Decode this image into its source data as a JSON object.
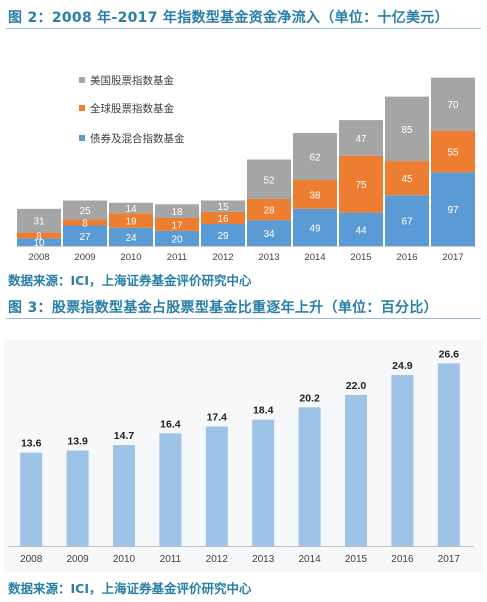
{
  "figure1": {
    "title": "图 2：2008 年-2017 年指数型基金资金净流入（单位：十亿美元）",
    "source": "数据来源：ICI，上海证券基金评价研究中心"
  },
  "figure2": {
    "title": "图 3：股票指数型基金占股票型基金比重逐年上升（单位：百分比）",
    "source": "数据来源：ICI，上海证券基金评价研究中心"
  },
  "colors": {
    "title_blue": "#2a7fa6",
    "grey": "#a5a5a5",
    "orange": "#ed7d31",
    "blue": "#5b9bd5",
    "bar2": "#9dc3e6"
  },
  "chart_data": [
    {
      "type": "bar",
      "stacked": true,
      "categories": [
        "2008",
        "2009",
        "2010",
        "2011",
        "2012",
        "2013",
        "2014",
        "2015",
        "2016",
        "2017"
      ],
      "series": [
        {
          "name": "债券及混合指数基金",
          "color": "#5b9bd5",
          "values": [
            10,
            27,
            24,
            20,
            29,
            34,
            49,
            44,
            67,
            97
          ]
        },
        {
          "name": "全球股票指数基金",
          "color": "#ed7d31",
          "values": [
            8,
            8,
            19,
            17,
            16,
            28,
            38,
            75,
            45,
            55
          ]
        },
        {
          "name": "美国股票指数基金",
          "color": "#a5a5a5",
          "values": [
            31,
            25,
            14,
            18,
            15,
            52,
            62,
            47,
            85,
            70
          ]
        }
      ],
      "legend_position": "top-left",
      "grid": false,
      "ylim": [
        0,
        240
      ]
    },
    {
      "type": "bar",
      "categories": [
        "2008",
        "2009",
        "2010",
        "2011",
        "2012",
        "2013",
        "2014",
        "2015",
        "2016",
        "2017"
      ],
      "values": [
        13.6,
        13.9,
        14.7,
        16.4,
        17.4,
        18.4,
        20.2,
        22.0,
        24.9,
        26.6
      ],
      "value_labels": [
        "13.6",
        "13.9",
        "14.7",
        "16.4",
        "17.4",
        "18.4",
        "20.2",
        "22.0",
        "24.9",
        "26.6"
      ],
      "grid": false,
      "ylim": [
        0,
        30
      ]
    }
  ]
}
